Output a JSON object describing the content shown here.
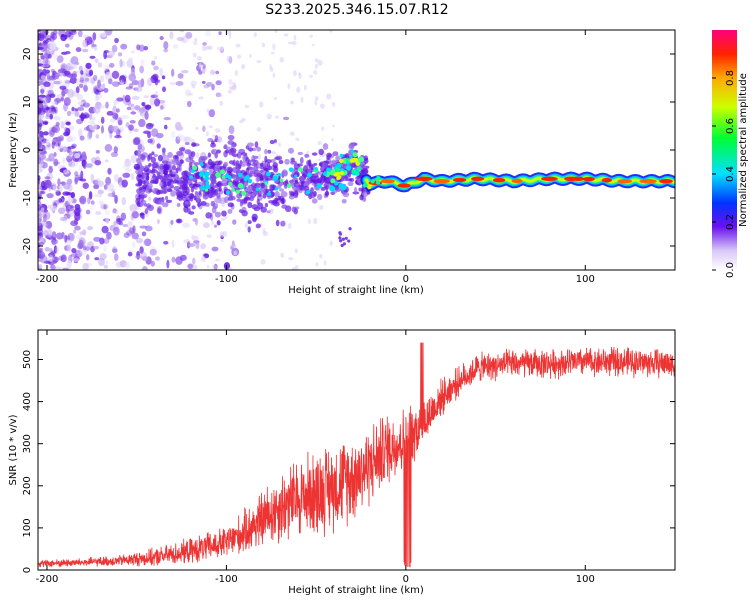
{
  "title": "S233.2025.346.15.07.R12",
  "chart_data": [
    {
      "type": "heatmap",
      "title": "S233.2025.346.15.07.R12",
      "xlabel": "Height of straight line (km)",
      "ylabel": "Frequency (Hz)",
      "xlim": [
        -205,
        150
      ],
      "ylim": [
        -25,
        25
      ],
      "xticks": [
        -200,
        -100,
        0,
        100
      ],
      "yticks": [
        20,
        10,
        0,
        -10,
        -20
      ],
      "colorbar": {
        "label": "Normalized spectral amplitude",
        "range": [
          0,
          1
        ],
        "ticks": [
          "0.0",
          "0.2",
          "0.4",
          "0.6",
          "0.8"
        ]
      },
      "ridge": {
        "description_hidden": true,
        "x": [
          -120,
          -100,
          -80,
          -60,
          -40,
          -30,
          -20,
          -10,
          0,
          10,
          20,
          40,
          60,
          80,
          100,
          120,
          150
        ],
        "frequency": [
          -6,
          -6.5,
          -7,
          -6.5,
          -5,
          -3,
          -7,
          -6.5,
          -7.5,
          -6,
          -6.5,
          -6,
          -6.5,
          -6,
          -6,
          -6.5,
          -6.5
        ]
      }
    },
    {
      "type": "line",
      "xlabel": "Height of straight line (km)",
      "ylabel": "SNR (10 * v/v)",
      "xlim": [
        -205,
        150
      ],
      "ylim": [
        0,
        570
      ],
      "xticks": [
        -200,
        -100,
        0,
        100
      ],
      "yticks": [
        0,
        100,
        200,
        300,
        400,
        500
      ],
      "color": "#ee3333",
      "envelope": {
        "x": [
          -205,
          -180,
          -160,
          -140,
          -120,
          -100,
          -90,
          -80,
          -70,
          -60,
          -50,
          -40,
          -30,
          -20,
          -10,
          0,
          10,
          20,
          30,
          40,
          60,
          80,
          100,
          120,
          150
        ],
        "mean": [
          15,
          18,
          22,
          30,
          45,
          65,
          90,
          120,
          150,
          170,
          185,
          200,
          220,
          250,
          290,
          310,
          350,
          410,
          450,
          480,
          490,
          490,
          495,
          495,
          490
        ],
        "spread": [
          10,
          12,
          15,
          25,
          35,
          45,
          60,
          80,
          100,
          110,
          120,
          120,
          120,
          110,
          100,
          90,
          70,
          50,
          40,
          40,
          40,
          40,
          40,
          40,
          40
        ]
      }
    }
  ]
}
